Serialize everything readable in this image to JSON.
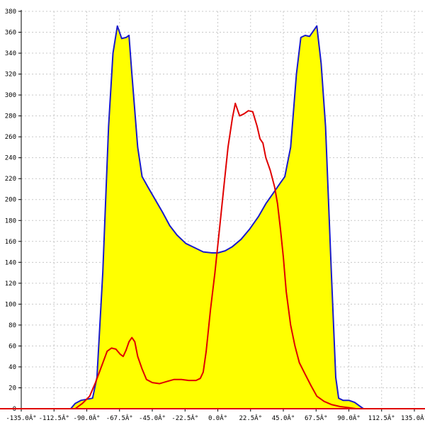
{
  "chart_data": {
    "type": "area",
    "x_unit": "°",
    "xlim": [
      -135,
      135
    ],
    "ylim": [
      0,
      380
    ],
    "x_ticks": [
      -135,
      -112.5,
      -90,
      -67.5,
      -45,
      -22.5,
      0,
      22.5,
      45,
      67.5,
      90,
      112.5,
      135
    ],
    "x_tick_labels": [
      "-135.0Â°",
      "-112.5Â°",
      "-90.0Â°",
      "-67.5Â°",
      "-45.0Â°",
      "-22.5Â°",
      "0.0Â°",
      "22.5Â°",
      "45.0Â°",
      "67.5Â°",
      "90.0Â°",
      "112.5Â°",
      "135.0Â°"
    ],
    "y_ticks": [
      0,
      20,
      40,
      60,
      80,
      100,
      120,
      140,
      160,
      180,
      200,
      220,
      240,
      260,
      280,
      300,
      320,
      340,
      360,
      380
    ],
    "y_tick_labels": [
      "0",
      "20",
      "40",
      "60",
      "80",
      "100",
      "120",
      "140",
      "160",
      "180",
      "200",
      "220",
      "240",
      "260",
      "280",
      "300",
      "320",
      "340",
      "360",
      "380"
    ],
    "grid": true,
    "series": [
      {
        "color": "#1a1acc",
        "fill": "#ffff00",
        "points": [
          [
            -101,
            0
          ],
          [
            -98,
            5
          ],
          [
            -94,
            8
          ],
          [
            -90,
            9
          ],
          [
            -86,
            10
          ],
          [
            -83,
            30
          ],
          [
            -79,
            130
          ],
          [
            -75,
            270
          ],
          [
            -72,
            340
          ],
          [
            -69,
            366
          ],
          [
            -66,
            354
          ],
          [
            -63,
            355
          ],
          [
            -61,
            357
          ],
          [
            -59,
            320
          ],
          [
            -55,
            250
          ],
          [
            -52,
            222
          ],
          [
            -48,
            212
          ],
          [
            -43,
            200
          ],
          [
            -38,
            188
          ],
          [
            -33,
            175
          ],
          [
            -28,
            166
          ],
          [
            -22,
            158
          ],
          [
            -16,
            154
          ],
          [
            -10,
            150
          ],
          [
            -4,
            149
          ],
          [
            0,
            149
          ],
          [
            5,
            151
          ],
          [
            10,
            155
          ],
          [
            16,
            162
          ],
          [
            22,
            172
          ],
          [
            28,
            184
          ],
          [
            33,
            196
          ],
          [
            38,
            206
          ],
          [
            43,
            216
          ],
          [
            46,
            222
          ],
          [
            50,
            250
          ],
          [
            54,
            320
          ],
          [
            57,
            355
          ],
          [
            60,
            357
          ],
          [
            63,
            356
          ],
          [
            66,
            362
          ],
          [
            68,
            366
          ],
          [
            71,
            330
          ],
          [
            74,
            270
          ],
          [
            78,
            130
          ],
          [
            81,
            30
          ],
          [
            83,
            10
          ],
          [
            86,
            8
          ],
          [
            90,
            8
          ],
          [
            94,
            6
          ],
          [
            97,
            3
          ],
          [
            100,
            0
          ]
        ]
      },
      {
        "color": "#e00000",
        "points": [
          [
            -98,
            0
          ],
          [
            -93,
            5
          ],
          [
            -88,
            12
          ],
          [
            -84,
            25
          ],
          [
            -80,
            40
          ],
          [
            -76,
            55
          ],
          [
            -73,
            58
          ],
          [
            -70,
            57
          ],
          [
            -67,
            52
          ],
          [
            -65,
            50
          ],
          [
            -63,
            56
          ],
          [
            -61,
            64
          ],
          [
            -59,
            68
          ],
          [
            -57,
            64
          ],
          [
            -55,
            50
          ],
          [
            -52,
            38
          ],
          [
            -49,
            28
          ],
          [
            -45,
            25
          ],
          [
            -40,
            24
          ],
          [
            -35,
            26
          ],
          [
            -30,
            28
          ],
          [
            -25,
            28
          ],
          [
            -20,
            27
          ],
          [
            -15,
            27
          ],
          [
            -12,
            29
          ],
          [
            -10,
            35
          ],
          [
            -8,
            55
          ],
          [
            -5,
            95
          ],
          [
            -2,
            130
          ],
          [
            1,
            170
          ],
          [
            4,
            210
          ],
          [
            7,
            250
          ],
          [
            10,
            278
          ],
          [
            12,
            292
          ],
          [
            15,
            280
          ],
          [
            18,
            282
          ],
          [
            21,
            285
          ],
          [
            24,
            284
          ],
          [
            27,
            270
          ],
          [
            29,
            258
          ],
          [
            31,
            254
          ],
          [
            33,
            240
          ],
          [
            36,
            228
          ],
          [
            39,
            212
          ],
          [
            41,
            196
          ],
          [
            43,
            172
          ],
          [
            45,
            145
          ],
          [
            47,
            112
          ],
          [
            50,
            80
          ],
          [
            53,
            60
          ],
          [
            56,
            44
          ],
          [
            60,
            33
          ],
          [
            64,
            22
          ],
          [
            68,
            12
          ],
          [
            73,
            7
          ],
          [
            78,
            4
          ],
          [
            84,
            2
          ],
          [
            90,
            1
          ],
          [
            95,
            0
          ],
          [
            135,
            0
          ]
        ]
      }
    ]
  }
}
